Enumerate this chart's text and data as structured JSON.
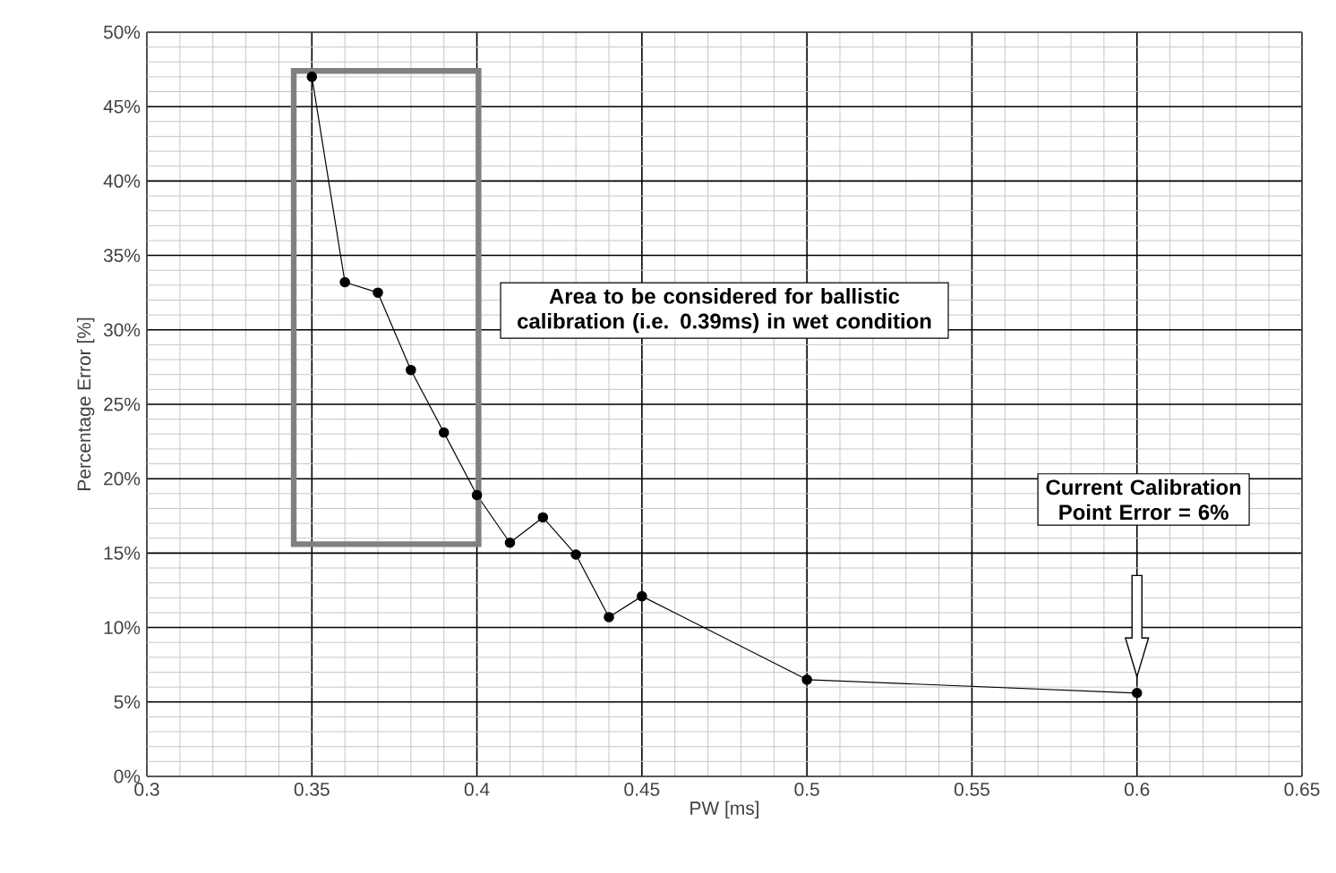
{
  "chart_data": {
    "type": "line",
    "xlabel": "PW [ms]",
    "ylabel": "Percentage Error [%]",
    "x": [
      0.35,
      0.36,
      0.37,
      0.38,
      0.39,
      0.4,
      0.41,
      0.42,
      0.43,
      0.44,
      0.45,
      0.5,
      0.6
    ],
    "series": [
      {
        "color": "#000000",
        "values": [
          47.0,
          33.2,
          32.5,
          27.3,
          23.1,
          18.9,
          15.7,
          17.4,
          14.9,
          10.7,
          12.1,
          6.5,
          5.6
        ]
      }
    ],
    "xlim": [
      0.3,
      0.65
    ],
    "xticks": [
      0.3,
      0.35,
      0.4,
      0.45,
      0.5,
      0.55,
      0.6,
      0.65
    ],
    "ylim": [
      0,
      50
    ],
    "yticks": [
      {
        "value": 0,
        "label": "0%"
      },
      {
        "value": 5,
        "label": "5%"
      },
      {
        "value": 10,
        "label": "10%"
      },
      {
        "value": 15,
        "label": "15%"
      },
      {
        "value": 20,
        "label": "20%"
      },
      {
        "value": 25,
        "label": "25%"
      },
      {
        "value": 30,
        "label": "30%"
      },
      {
        "value": 35,
        "label": "35%"
      },
      {
        "value": 40,
        "label": "40%"
      },
      {
        "value": 45,
        "label": "45%"
      },
      {
        "value": 50,
        "label": "50%"
      }
    ],
    "grid": true,
    "marker": "circle",
    "line_style": "solid",
    "annotations": [
      "Area to be considered for ballistic calibration (i.e. 0.39ms) in wet condition",
      "Current Calibration Point Error = 6%"
    ]
  }
}
